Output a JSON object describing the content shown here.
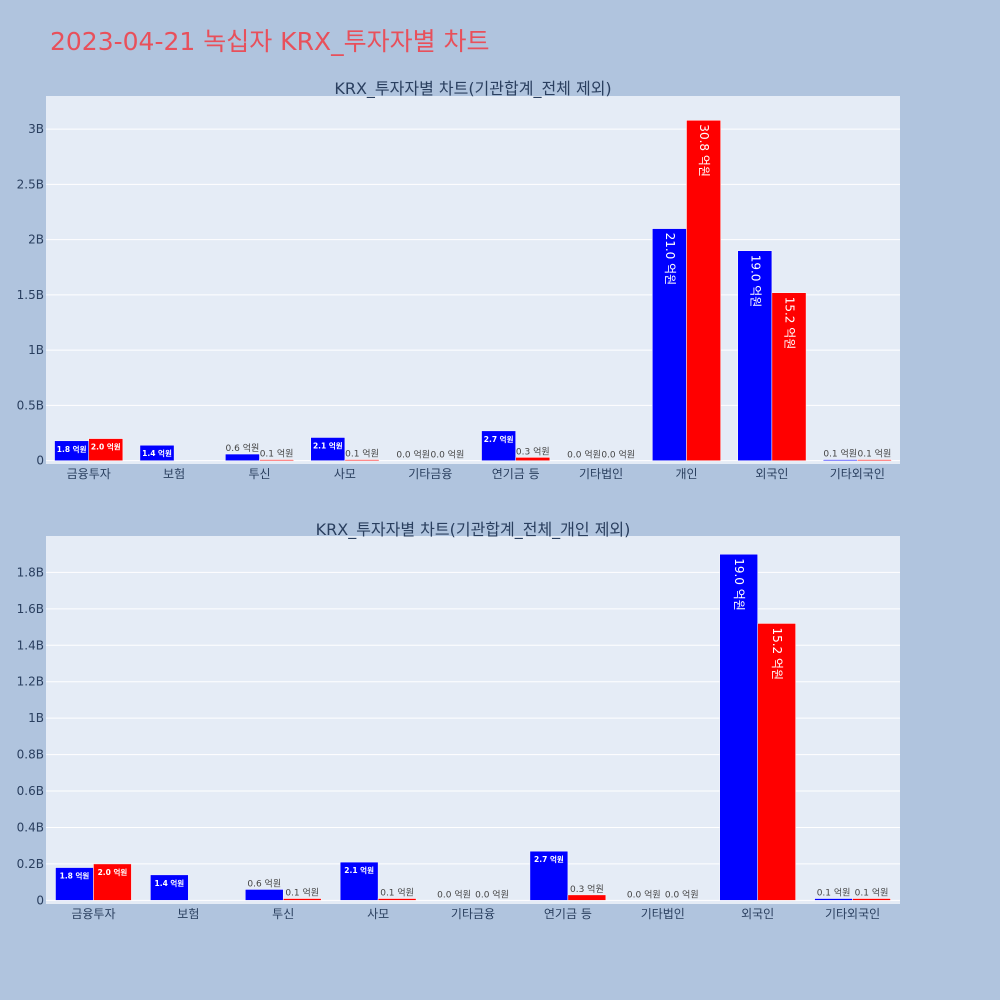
{
  "page": {
    "title": "2023-04-21 녹십자 KRX_투자자별 차트"
  },
  "colors": {
    "page_bg": "#b0c4de",
    "plot_bg": "#e5ecf6",
    "buy": "#0000ff",
    "sell": "#ff0000",
    "title": "#e8505b",
    "text": "#2a3f5f"
  },
  "chart_data": [
    {
      "type": "bar",
      "title": "KRX_투자자별 차트(기관합계_전체 제외)",
      "categories": [
        "금융투자",
        "보험",
        "투신",
        "사모",
        "기타금융",
        "연기금 등",
        "기타법인",
        "개인",
        "외국인",
        "기타외국인"
      ],
      "series": [
        {
          "color": "#0000ff",
          "values": [
            0.18,
            0.14,
            0.06,
            0.21,
            0.0,
            0.27,
            0.0,
            2.1,
            1.9,
            0.01
          ]
        },
        {
          "color": "#ff0000",
          "values": [
            0.2,
            0.0,
            0.01,
            0.01,
            0.0,
            0.03,
            0.0,
            3.08,
            1.52,
            0.01
          ]
        }
      ],
      "data_labels": [
        [
          "1.8 억원",
          "1.4 억원",
          "0.6 억원",
          "2.1 억원",
          "0.0 억원",
          "2.7 억원",
          "0.0 억원",
          "21.0 억원",
          "19.0 억원",
          "0.1 억원"
        ],
        [
          "2.0 억원",
          "",
          "0.1 억원",
          "0.1 억원",
          "0.0 억원",
          "0.3 억원",
          "0.0 억원",
          "30.8 억원",
          "15.2 억원",
          "0.1 억원"
        ]
      ],
      "ylim": [
        -0.03,
        3.3
      ],
      "yticks": [
        0,
        0.5,
        1,
        1.5,
        2,
        2.5,
        3
      ],
      "ytick_labels": [
        "0",
        "0.5B",
        "1B",
        "1.5B",
        "2B",
        "2.5B",
        "3B"
      ],
      "grid": true
    },
    {
      "type": "bar",
      "title": "KRX_투자자별 차트(기관합계_전체_개인 제외)",
      "categories": [
        "금융투자",
        "보험",
        "투신",
        "사모",
        "기타금융",
        "연기금 등",
        "기타법인",
        "외국인",
        "기타외국인"
      ],
      "series": [
        {
          "color": "#0000ff",
          "values": [
            0.18,
            0.14,
            0.06,
            0.21,
            0.0,
            0.27,
            0.0,
            1.9,
            0.01
          ]
        },
        {
          "color": "#ff0000",
          "values": [
            0.2,
            0.0,
            0.01,
            0.01,
            0.0,
            0.03,
            0.0,
            1.52,
            0.01
          ]
        }
      ],
      "data_labels": [
        [
          "1.8 억원",
          "1.4 억원",
          "0.6 억원",
          "2.1 억원",
          "0.0 억원",
          "2.7 억원",
          "0.0 억원",
          "19.0 억원",
          "0.1 억원"
        ],
        [
          "2.0 억원",
          "",
          "0.1 억원",
          "0.1 억원",
          "0.0 억원",
          "0.3 억원",
          "0.0 억원",
          "15.2 억원",
          "0.1 억원"
        ]
      ],
      "ylim": [
        -0.02,
        2.0
      ],
      "yticks": [
        0,
        0.2,
        0.4,
        0.6,
        0.8,
        1.0,
        1.2,
        1.4,
        1.6,
        1.8
      ],
      "ytick_labels": [
        "0",
        "0.2B",
        "0.4B",
        "0.6B",
        "0.8B",
        "1B",
        "1.2B",
        "1.4B",
        "1.6B",
        "1.8B"
      ],
      "grid": true
    }
  ]
}
